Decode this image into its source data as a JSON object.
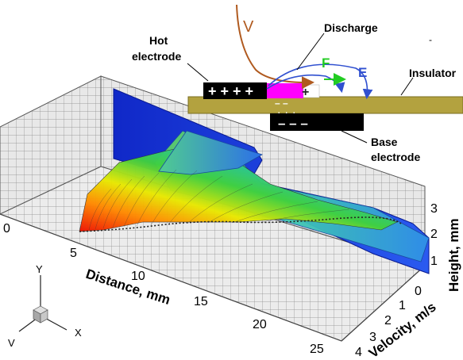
{
  "schematic": {
    "labels": {
      "v": "V",
      "discharge": "Discharge",
      "hot_line1": "Hot",
      "hot_line2": "electrode",
      "insulator": "Insulator",
      "base_line1": "Base",
      "base_line2": "electrode",
      "f": "F",
      "e": "E",
      "dash": "-"
    },
    "charges": {
      "hot": "+ + + +",
      "hot_segment": "+",
      "under_insulator": "+   +   +",
      "insulator_minus": "–   –",
      "base": "–   –   –"
    },
    "colors": {
      "insulator": "#b3a23f",
      "plus_segment": "#ff00ff",
      "velocity_curve": "#b05a1f",
      "force": "#22cc22",
      "field": "#3050d0"
    }
  },
  "axes": {
    "distance": {
      "label": "Distance, mm",
      "ticks": [
        "0",
        "5",
        "10",
        "15",
        "20",
        "25"
      ]
    },
    "velocity": {
      "label": "Velocity, m/s",
      "ticks": [
        "0",
        "1",
        "2",
        "3",
        "4"
      ]
    },
    "height": {
      "label": "Height, mm",
      "ticks": [
        "1",
        "2",
        "3"
      ]
    }
  },
  "triad": {
    "y": "Y",
    "x": "X",
    "v": "V"
  }
}
